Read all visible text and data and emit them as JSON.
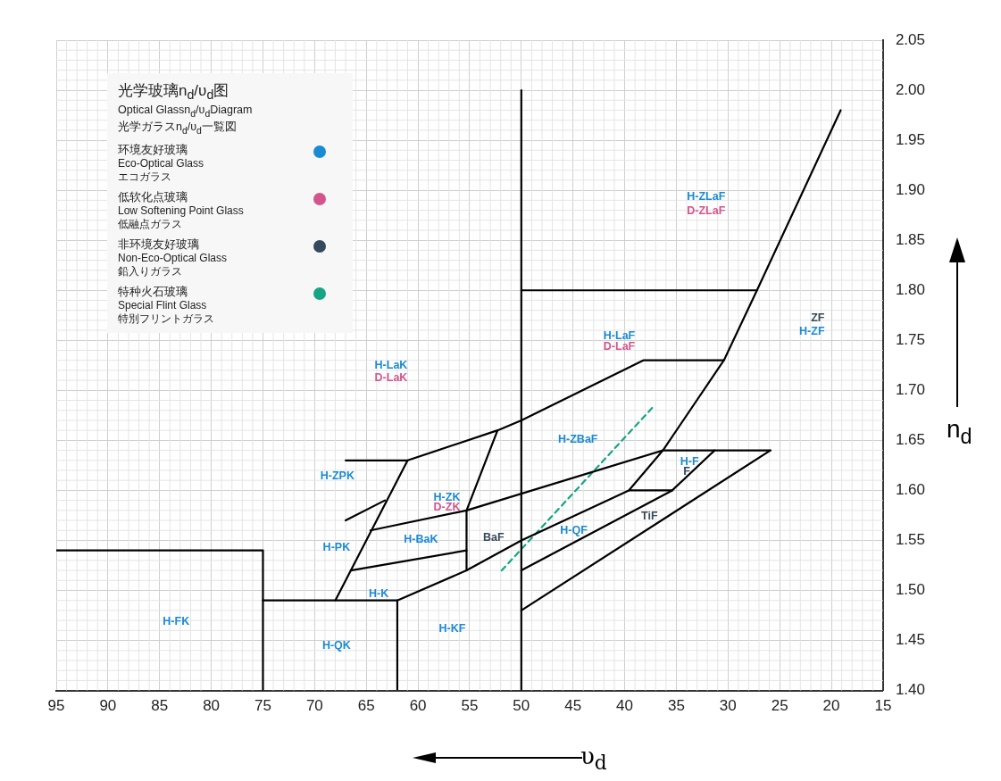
{
  "chart_data": {
    "type": "line",
    "title": "光学玻璃n$_{d}$/υ$_{d}$图",
    "subtitle": "Optical Glassn$_{d}$/υ$_{d}$Diagram",
    "annotations": [
      "光学ガラスn$_{d}$/υ$_{d}$一覧図",
      "环境友好玻璃\nEco-Optical Glass\nエコガラス",
      "低软化点玻璃\nLow Softening Point  Glass\n低融点ガラス",
      "非环境友好玻璃\nNon-Eco-Optical Glass\n鉛入りガラス",
      "特种火石玻璃\nSpecial Flint Glass\n特別フリントガラス",
      "H-ZLaF",
      "D-ZLaF",
      "H-LaF",
      "D-LaF",
      "ZF",
      "H-ZF",
      "H-LaK",
      "D-LaK",
      "H-ZBaF",
      "H-ZPK",
      "H-ZK",
      "D-ZK",
      "H-F",
      "F",
      "TiF",
      "H-QF",
      "BaF",
      "H-BaK",
      "H-PK",
      "H-K",
      "H-KF",
      "H-FK",
      "H-QK"
    ],
    "xlabel": "υ$_{d}$",
    "ylabel": "n$_{d}$",
    "xlim": [
      95,
      15
    ],
    "xticks": [
      95,
      90,
      85,
      80,
      75,
      70,
      65,
      60,
      55,
      50,
      45,
      40,
      35,
      30,
      25,
      20,
      15
    ],
    "ylim": [
      1.4,
      2.05
    ],
    "yticks": [
      {
        "value": 1.4,
        "label": "1.40"
      },
      {
        "value": 1.45,
        "label": "1.45"
      },
      {
        "value": 1.5,
        "label": "1.50"
      },
      {
        "value": 1.55,
        "label": "1.55"
      },
      {
        "value": 1.6,
        "label": "1.60"
      },
      {
        "value": 1.65,
        "label": "1.65"
      },
      {
        "value": 1.7,
        "label": "1.70"
      },
      {
        "value": 1.75,
        "label": "1.75"
      },
      {
        "value": 1.8,
        "label": "1.80"
      },
      {
        "value": 1.85,
        "label": "1.85"
      },
      {
        "value": 1.9,
        "label": "1.90"
      },
      {
        "value": 1.95,
        "label": "1.95"
      },
      {
        "value": 2.0,
        "label": "2.00"
      },
      {
        "value": 2.05,
        "label": "2.05"
      }
    ],
    "grid": true,
    "marker": "none",
    "line_style": "solid",
    "series": [
      {
        "color": "#000000",
        "x": [
          95,
          75,
          75
        ],
        "values": [
          1.54,
          1.54,
          1.4
        ]
      },
      {
        "color": "#000000",
        "x": [
          75,
          62,
          62
        ],
        "values": [
          1.49,
          1.49,
          1.4
        ]
      },
      {
        "color": "#000000",
        "x": [
          68,
          61
        ],
        "values": [
          1.49,
          1.63
        ]
      },
      {
        "color": "#000000",
        "x": [
          67,
          61,
          52.3,
          50,
          38.2,
          30.4
        ],
        "values": [
          1.63,
          1.63,
          1.66,
          1.67,
          1.73,
          1.73
        ]
      },
      {
        "color": "#000000",
        "x": [
          19.1,
          27.2,
          30.4,
          36.3,
          39.6,
          35.4,
          31.3
        ],
        "values": [
          1.98,
          1.8,
          1.73,
          1.64,
          1.6,
          1.6,
          1.64
        ]
      },
      {
        "color": "#000000",
        "x": [
          50,
          27.2
        ],
        "values": [
          1.8,
          1.8
        ]
      },
      {
        "color": "#000000",
        "x": [
          50,
          50
        ],
        "values": [
          1.4,
          2.0
        ]
      },
      {
        "color": "#000000",
        "x": [
          52.3,
          55.3,
          55.3
        ],
        "values": [
          1.66,
          1.58,
          1.52
        ]
      },
      {
        "color": "#000000",
        "x": [
          67,
          63.2
        ],
        "values": [
          1.57,
          1.59
        ]
      },
      {
        "color": "#000000",
        "x": [
          64.6,
          55.3,
          36.3,
          25.9
        ],
        "values": [
          1.56,
          1.58,
          1.64,
          1.64
        ]
      },
      {
        "color": "#000000",
        "x": [
          66.5,
          55.3
        ],
        "values": [
          1.52,
          1.54
        ]
      },
      {
        "color": "#000000",
        "x": [
          62,
          55.3,
          50,
          39.6
        ],
        "values": [
          1.49,
          1.52,
          1.55,
          1.6
        ]
      },
      {
        "color": "#000000",
        "x": [
          50,
          35.4
        ],
        "values": [
          1.52,
          1.6
        ]
      },
      {
        "color": "#000000",
        "x": [
          50,
          25.9
        ],
        "values": [
          1.48,
          1.64
        ]
      },
      {
        "color": "#16a584",
        "line_style": "dashed",
        "x": [
          51.9,
          37.2
        ],
        "values": [
          1.52,
          1.684
        ]
      }
    ]
  }
}
